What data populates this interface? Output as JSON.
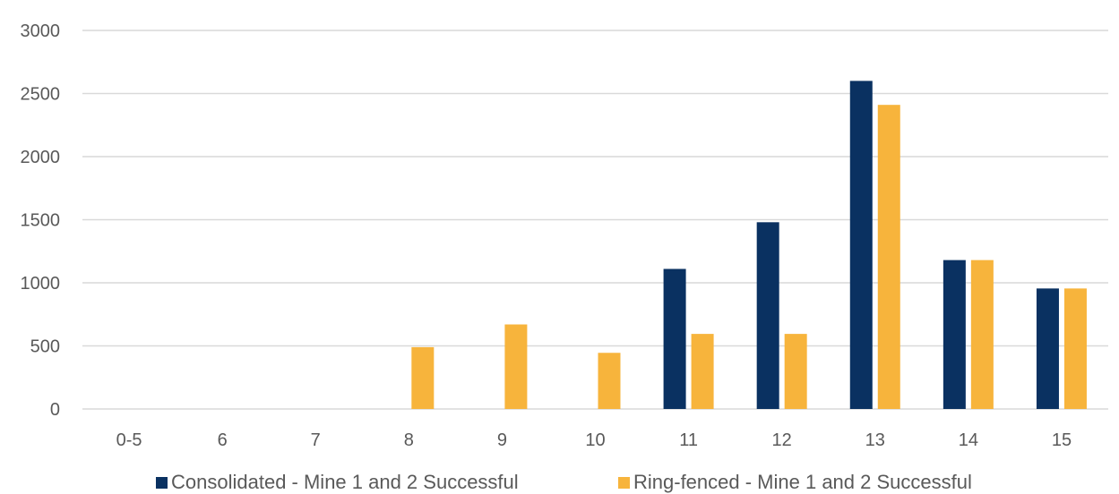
{
  "chart_data": {
    "type": "bar",
    "categories": [
      "0-5",
      "6",
      "7",
      "8",
      "9",
      "10",
      "11",
      "12",
      "13",
      "14",
      "15"
    ],
    "series": [
      {
        "name": "Consolidated - Mine 1 and 2 Successful",
        "color": "#0a3161",
        "values": [
          0,
          0,
          0,
          0,
          0,
          0,
          1110,
          1480,
          2600,
          1180,
          955
        ]
      },
      {
        "name": "Ring-fenced - Mine 1 and 2 Successful",
        "color": "#f7b43c",
        "values": [
          0,
          0,
          0,
          490,
          670,
          445,
          595,
          595,
          2410,
          1180,
          955
        ]
      }
    ],
    "y_ticks": [
      "0",
      "500",
      "1000",
      "1500",
      "2000",
      "2500",
      "3000"
    ],
    "ylim": [
      0,
      3000
    ],
    "grid": true,
    "legend_position": "bottom",
    "title": "",
    "xlabel": "",
    "ylabel": ""
  }
}
